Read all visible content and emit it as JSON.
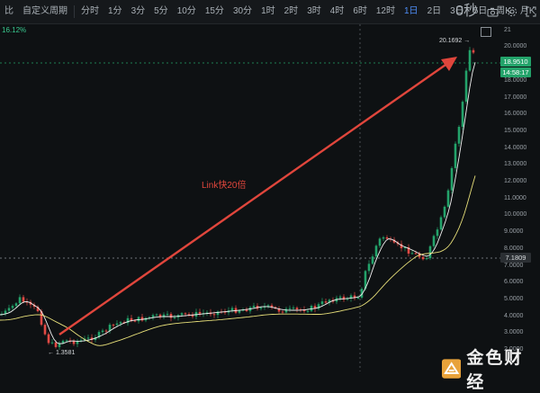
{
  "toolbar": {
    "items": [
      "比",
      "自定义周期",
      "分时",
      "1分",
      "3分",
      "5分",
      "10分",
      "15分",
      "30分",
      "1时",
      "2时",
      "3时",
      "4时",
      "6时",
      "12时",
      "1日",
      "2日",
      "3日",
      "5日",
      "周K",
      "月K"
    ],
    "active_index": 15,
    "seconds_label": "0秒"
  },
  "chart": {
    "change_pct": "16.12%",
    "current_price": "18.9510",
    "countdown": "14:58:17",
    "reference_price": "7.1809",
    "high_label": "20.1692",
    "low_label": "1.3581",
    "annotation": "Link快20倍",
    "watermark": "金色财经",
    "axis_ticks": [
      "21",
      "20.0000",
      "19.0000",
      "18.0000",
      "17.0000",
      "16.0000",
      "15.0000",
      "14.0000",
      "13.0000",
      "12.0000",
      "11.0000",
      "10.0000",
      "9.0000",
      "8.0000",
      "7.0000",
      "6.0000",
      "5.0000",
      "4.0000",
      "3.0000",
      "2.0000"
    ],
    "colors": {
      "up": "#23a36a",
      "down": "#e24a44",
      "ma_short": "#f2f2f2",
      "ma_long": "#e8e07a",
      "arrow": "#e0463c"
    }
  }
}
